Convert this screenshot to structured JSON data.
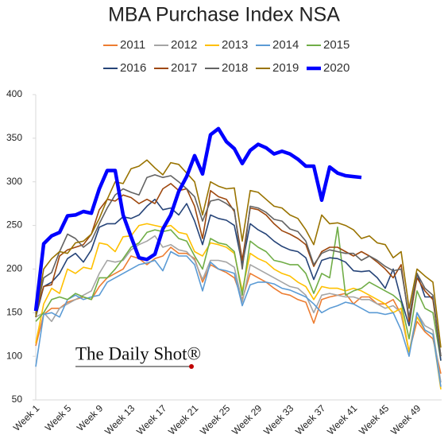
{
  "chart_data": {
    "type": "line",
    "title": "MBA Purchase Index NSA",
    "watermark": "The Daily Shot®",
    "categories": [
      "Week 1",
      null,
      null,
      null,
      "Week 5",
      null,
      null,
      null,
      "Week 9",
      null,
      null,
      null,
      "Week 13",
      null,
      null,
      null,
      "Week 17",
      null,
      null,
      null,
      "Week 21",
      null,
      null,
      null,
      "Week 25",
      null,
      null,
      null,
      "Week 29",
      null,
      null,
      null,
      "Week 33",
      null,
      null,
      null,
      "Week 37",
      null,
      null,
      null,
      "Week 41",
      null,
      null,
      null,
      "Week 45",
      null,
      null,
      null,
      "Week 49",
      null,
      null,
      null
    ],
    "ylim": [
      50,
      400
    ],
    "yticks": [
      50,
      100,
      150,
      200,
      250,
      300,
      350,
      400
    ],
    "grid": false,
    "legend": "top",
    "series": [
      {
        "name": "2011",
        "color": "#ED7D31",
        "values": [
          112,
          148,
          155,
          155,
          162,
          165,
          168,
          165,
          180,
          190,
          195,
          200,
          215,
          212,
          205,
          212,
          215,
          225,
          218,
          218,
          212,
          185,
          205,
          200,
          196,
          190,
          165,
          195,
          190,
          185,
          178,
          172,
          170,
          165,
          162,
          138,
          165,
          168,
          170,
          172,
          160,
          168,
          168,
          160,
          160,
          165,
          148,
          105,
          140,
          128,
          120,
          80
        ]
      },
      {
        "name": "2012",
        "color": "#A5A5A5",
        "values": [
          145,
          150,
          140,
          155,
          160,
          165,
          170,
          175,
          195,
          210,
          208,
          210,
          222,
          228,
          232,
          238,
          225,
          228,
          222,
          220,
          210,
          188,
          210,
          210,
          208,
          202,
          162,
          205,
          200,
          195,
          190,
          185,
          180,
          178,
          170,
          150,
          170,
          172,
          170,
          168,
          168,
          165,
          165,
          160,
          155,
          158,
          150,
          105,
          150,
          135,
          130,
          70
        ]
      },
      {
        "name": "2013",
        "color": "#FFC000",
        "values": [
          115,
          160,
          178,
          172,
          200,
          195,
          202,
          200,
          230,
          228,
          220,
          237,
          238,
          250,
          252,
          250,
          248,
          250,
          242,
          240,
          220,
          215,
          230,
          228,
          225,
          218,
          175,
          218,
          212,
          208,
          200,
          195,
          192,
          185,
          180,
          165,
          180,
          178,
          178,
          175,
          178,
          175,
          170,
          165,
          160,
          150,
          155,
          105,
          145,
          130,
          125,
          62
        ]
      },
      {
        "name": "2014",
        "color": "#5B9BD5",
        "values": [
          88,
          148,
          150,
          145,
          165,
          170,
          165,
          168,
          170,
          185,
          190,
          195,
          200,
          205,
          207,
          210,
          198,
          220,
          215,
          215,
          205,
          175,
          208,
          200,
          198,
          195,
          158,
          182,
          185,
          185,
          183,
          178,
          176,
          172,
          168,
          160,
          150,
          155,
          158,
          162,
          160,
          155,
          150,
          150,
          148,
          150,
          130,
          100,
          150,
          130,
          125,
          65
        ]
      },
      {
        "name": "2015",
        "color": "#70AD47",
        "values": [
          140,
          150,
          165,
          168,
          165,
          172,
          168,
          165,
          190,
          190,
          200,
          212,
          225,
          230,
          242,
          245,
          243,
          245,
          235,
          232,
          215,
          200,
          235,
          230,
          228,
          220,
          170,
          232,
          225,
          220,
          210,
          208,
          205,
          205,
          195,
          172,
          195,
          190,
          248,
          170,
          175,
          178,
          185,
          180,
          175,
          170,
          162,
          120,
          175,
          155,
          150,
          95
        ]
      },
      {
        "name": "2016",
        "color": "#264478",
        "values": [
          145,
          180,
          185,
          195,
          212,
          218,
          208,
          222,
          248,
          252,
          252,
          260,
          258,
          262,
          272,
          280,
          268,
          270,
          262,
          275,
          255,
          228,
          262,
          258,
          256,
          250,
          205,
          252,
          245,
          240,
          232,
          226,
          222,
          220,
          213,
          188,
          210,
          213,
          212,
          208,
          198,
          197,
          198,
          190,
          178,
          200,
          165,
          135,
          195,
          168,
          168,
          95
        ]
      },
      {
        "name": "2017",
        "color": "#9E480E",
        "values": [
          150,
          180,
          182,
          215,
          222,
          225,
          228,
          240,
          268,
          280,
          278,
          285,
          282,
          275,
          280,
          275,
          292,
          298,
          290,
          292,
          272,
          235,
          290,
          283,
          280,
          266,
          210,
          270,
          268,
          262,
          252,
          244,
          240,
          235,
          228,
          203,
          220,
          225,
          225,
          220,
          215,
          220,
          215,
          208,
          200,
          190,
          205,
          140,
          190,
          175,
          165,
          100
        ]
      },
      {
        "name": "2018",
        "color": "#636363",
        "values": [
          148,
          190,
          196,
          220,
          240,
          235,
          225,
          232,
          252,
          270,
          285,
          292,
          288,
          285,
          305,
          308,
          305,
          307,
          300,
          292,
          283,
          255,
          278,
          280,
          275,
          268,
          200,
          272,
          270,
          265,
          257,
          255,
          246,
          243,
          232,
          205,
          218,
          222,
          220,
          218,
          218,
          210,
          215,
          210,
          203,
          198,
          200,
          145,
          195,
          178,
          170,
          100
        ]
      },
      {
        "name": "2019",
        "color": "#997300",
        "values": [
          145,
          200,
          212,
          220,
          218,
          230,
          232,
          240,
          258,
          280,
          300,
          298,
          315,
          318,
          325,
          316,
          308,
          322,
          320,
          310,
          300,
          262,
          300,
          295,
          292,
          293,
          232,
          290,
          288,
          280,
          272,
          270,
          262,
          258,
          245,
          228,
          262,
          252,
          253,
          250,
          245,
          235,
          238,
          230,
          228,
          213,
          220,
          155,
          200,
          192,
          185,
          110
        ]
      },
      {
        "name": "2020",
        "color": "#0000FF",
        "values": [
          152,
          229,
          238,
          242,
          261,
          262,
          266,
          264,
          292,
          313,
          313,
          262,
          237,
          213,
          211,
          217,
          246,
          262,
          289,
          306,
          330,
          309,
          354,
          361,
          346,
          338,
          321,
          336,
          343,
          339,
          332,
          335,
          332,
          326,
          318,
          318,
          279,
          317,
          310,
          307,
          306,
          305,
          null,
          null,
          null,
          null,
          null,
          null,
          null,
          null,
          null,
          null
        ]
      }
    ]
  }
}
